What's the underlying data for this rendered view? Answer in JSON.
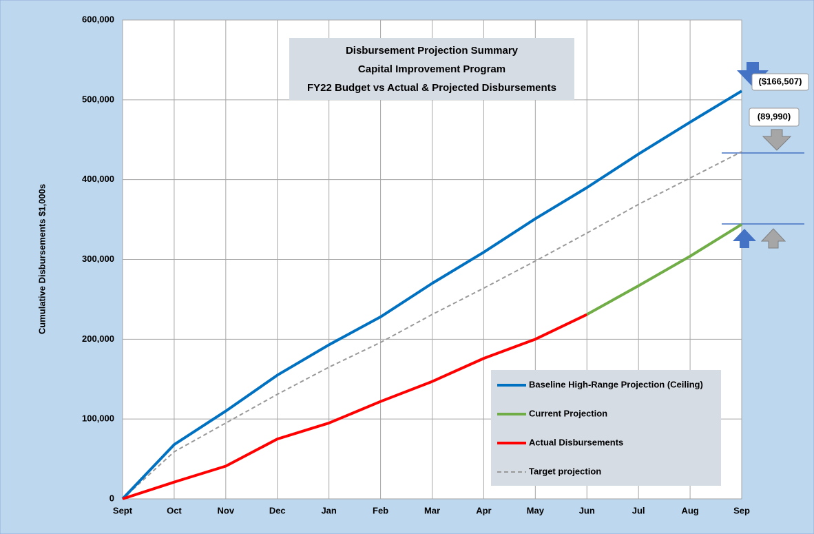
{
  "chart_data": {
    "type": "line",
    "title": [
      "Disbursement Projection Summary",
      "Capital Improvement Program",
      "FY22 Budget vs Actual & Projected Disbursements"
    ],
    "y_label": "Cumulative Disbursements $1,000s",
    "categories": [
      "Sept",
      "Oct",
      "Nov",
      "Dec",
      "Jan",
      "Feb",
      "Mar",
      "Apr",
      "May",
      "Jun",
      "Jul",
      "Aug",
      "Sep"
    ],
    "series": [
      {
        "name": "Baseline High-Range Projection (Ceiling)",
        "color": "#0070c0",
        "values": [
          0,
          68000,
          110000,
          155000,
          193000,
          228000,
          270000,
          309000,
          351000,
          390000,
          432000,
          472000,
          511000
        ]
      },
      {
        "name": "Current Projection",
        "color": "#70ad47",
        "values": [
          null,
          null,
          null,
          null,
          null,
          null,
          null,
          null,
          null,
          231000,
          267000,
          304000,
          344000
        ]
      },
      {
        "name": "Actual Disbursements",
        "color": "#ff0000",
        "values": [
          0,
          21000,
          41000,
          75000,
          95000,
          122000,
          147000,
          176000,
          200000,
          231000,
          null,
          null,
          null
        ]
      },
      {
        "name": "Target projection",
        "color": "#999999",
        "dashed": true,
        "values": [
          0,
          59000,
          95000,
          131000,
          165000,
          196000,
          231000,
          264000,
          298000,
          333000,
          369000,
          402000,
          435000
        ]
      }
    ],
    "ylim": [
      0,
      600000
    ],
    "yticks": [
      0,
      {
        "value": 100000,
        "label": "100,000"
      },
      {
        "value": 200000,
        "label": "200,000"
      },
      {
        "value": 300000,
        "label": "300,000"
      },
      {
        "value": 400000,
        "label": "400,000"
      },
      {
        "value": 500000,
        "label": "500,000"
      },
      {
        "value": 600000,
        "label": "600,000"
      }
    ],
    "grid": true,
    "annotations": [
      "($166,507)",
      "(89,990)"
    ]
  }
}
